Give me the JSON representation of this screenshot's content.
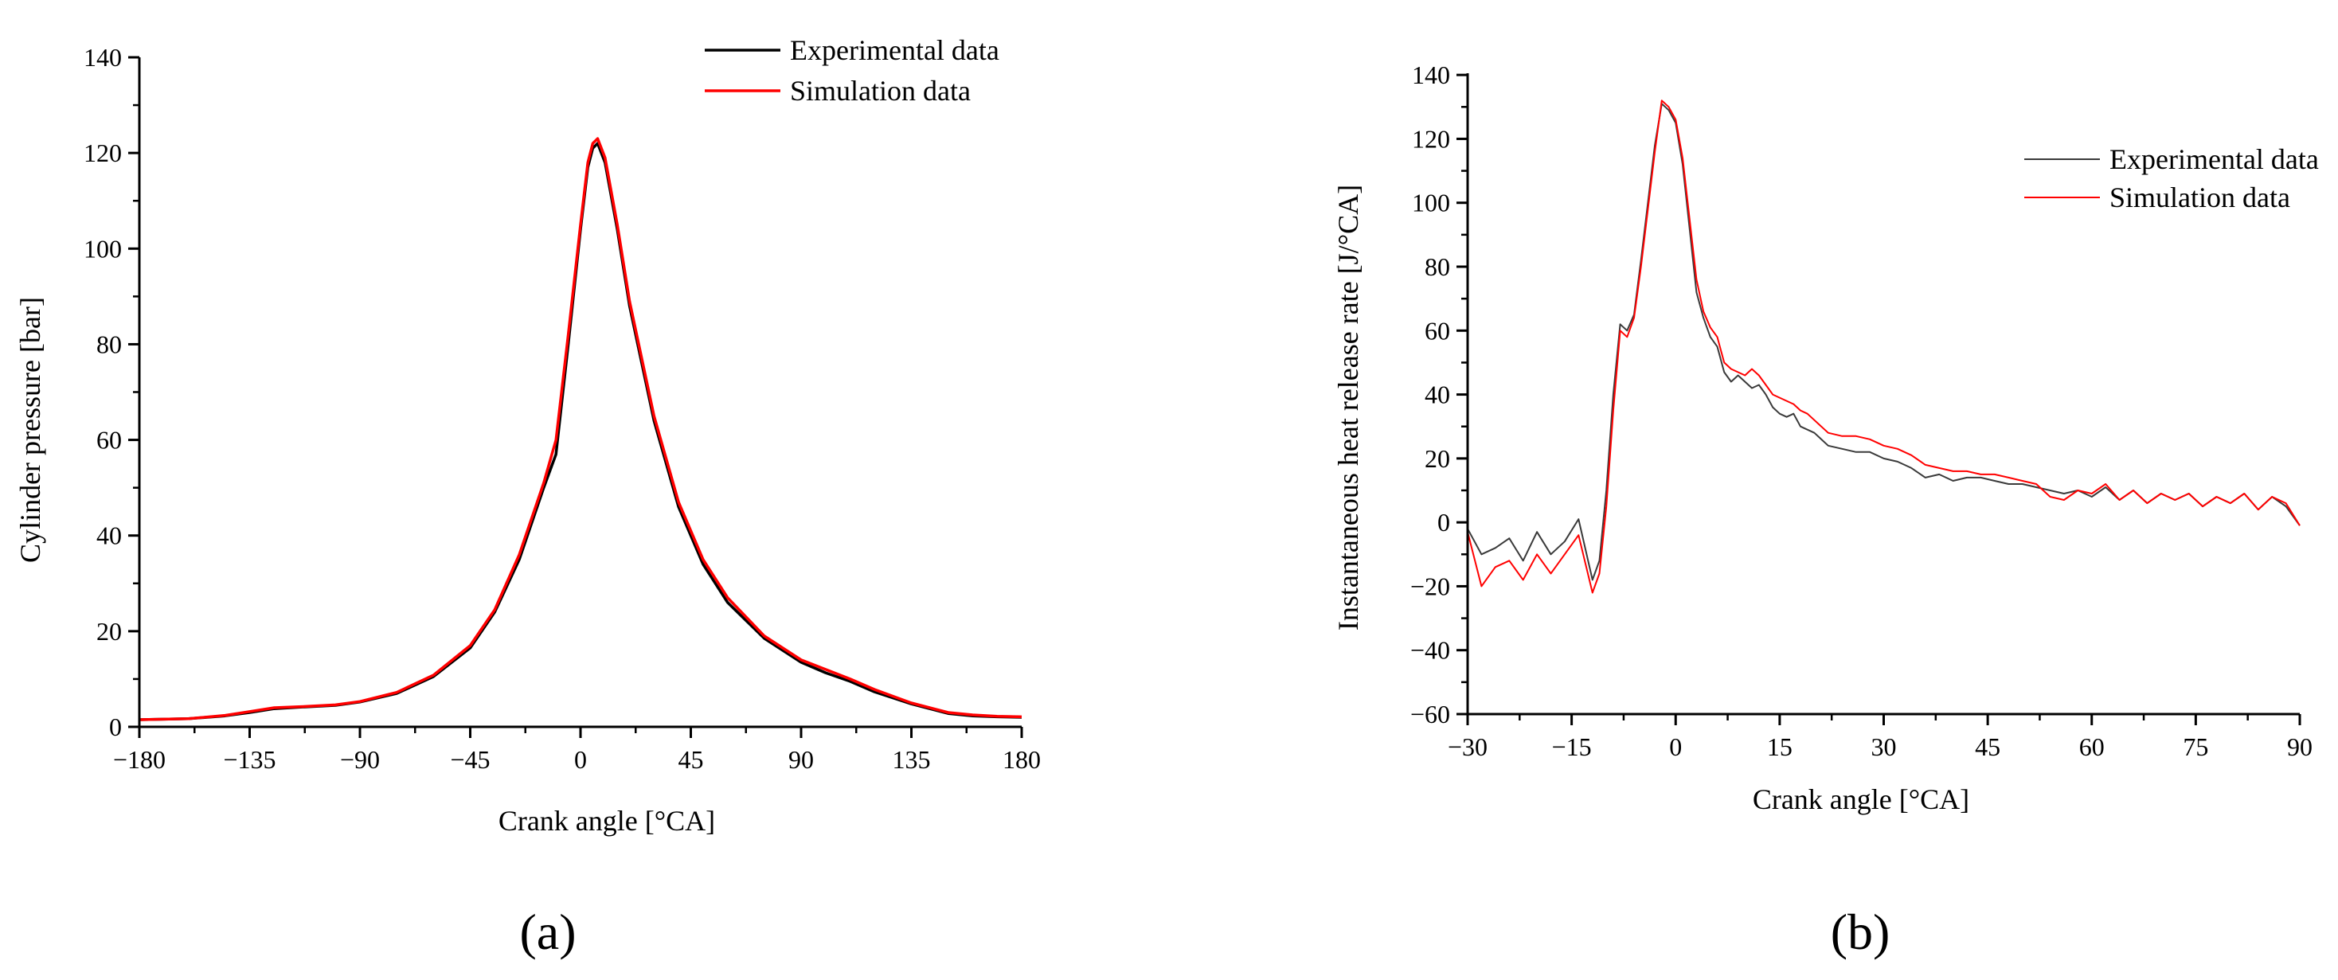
{
  "figure": {
    "panel_labels": [
      "(a)",
      "(b)"
    ]
  },
  "chart_data": [
    {
      "type": "line",
      "panel": "a",
      "title": "",
      "xlabel": "Crank angle [°CA]",
      "ylabel": "Cylinder pressure [bar]",
      "xlim": [
        -180,
        180
      ],
      "ylim": [
        0,
        140
      ],
      "xticks": [
        -180,
        -135,
        -90,
        -45,
        0,
        45,
        90,
        135,
        180
      ],
      "xtick_labels": [
        "−180",
        "−135",
        "−90",
        "−45",
        "0",
        "45",
        "90",
        "135",
        "180"
      ],
      "yticks": [
        0,
        20,
        40,
        60,
        80,
        100,
        120,
        140
      ],
      "ytick_labels": [
        "0",
        "20",
        "40",
        "60",
        "80",
        "100",
        "120",
        "140"
      ],
      "grid": false,
      "legend_position": "top-right",
      "series": [
        {
          "name": "Experimental data",
          "color": "#000000",
          "x": [
            -180,
            -160,
            -145,
            -135,
            -125,
            -115,
            -100,
            -90,
            -75,
            -60,
            -45,
            -35,
            -25,
            -15,
            -10,
            -5,
            0,
            3,
            5,
            7,
            10,
            15,
            20,
            30,
            40,
            50,
            60,
            75,
            90,
            100,
            110,
            120,
            135,
            150,
            160,
            170,
            180
          ],
          "y": [
            1.5,
            1.7,
            2.3,
            3.0,
            3.8,
            4.1,
            4.5,
            5.2,
            7.0,
            10.5,
            16.5,
            24,
            35,
            50,
            57,
            80,
            104,
            117,
            121,
            122,
            118,
            104,
            88,
            64,
            46,
            34,
            26,
            18.5,
            13.5,
            11.3,
            9.5,
            7.3,
            4.8,
            2.8,
            2.3,
            2.1,
            2.0
          ]
        },
        {
          "name": "Simulation data",
          "color": "#ff0000",
          "x": [
            -180,
            -160,
            -145,
            -135,
            -125,
            -115,
            -100,
            -90,
            -75,
            -60,
            -45,
            -35,
            -25,
            -15,
            -10,
            -5,
            0,
            3,
            5,
            7,
            10,
            15,
            20,
            30,
            40,
            50,
            60,
            75,
            90,
            100,
            110,
            120,
            135,
            150,
            160,
            170,
            180
          ],
          "y": [
            1.5,
            1.7,
            2.4,
            3.2,
            4.0,
            4.2,
            4.6,
            5.3,
            7.2,
            10.8,
            17,
            24.5,
            36,
            51,
            60,
            82,
            105,
            118,
            122,
            123,
            119,
            105,
            89,
            65,
            47,
            35,
            27,
            19,
            14,
            12,
            10,
            7.8,
            5.0,
            3.0,
            2.5,
            2.2,
            2.1
          ]
        }
      ]
    },
    {
      "type": "line",
      "panel": "b",
      "title": "",
      "xlabel": "Crank angle [°CA]",
      "ylabel": "Instantaneous heat release rate [J/°CA]",
      "xlim": [
        -30,
        90
      ],
      "ylim": [
        -60,
        150
      ],
      "xticks": [
        -30,
        -15,
        0,
        15,
        30,
        45,
        60,
        75,
        90
      ],
      "xtick_labels": [
        "−30",
        "−15",
        "0",
        "15",
        "30",
        "45",
        "60",
        "75",
        "90"
      ],
      "yticks": [
        -60,
        -40,
        -20,
        0,
        20,
        40,
        60,
        80,
        100,
        120,
        140
      ],
      "ytick_labels": [
        "−60",
        "−40",
        "−20",
        "0",
        "20",
        "40",
        "60",
        "80",
        "100",
        "120",
        "140"
      ],
      "grid": false,
      "legend_position": "top-right",
      "series": [
        {
          "name": "Experimental data",
          "color": "#3a3a3a",
          "x": [
            -30,
            -28,
            -26,
            -24,
            -22,
            -20,
            -18,
            -16,
            -14,
            -12,
            -11,
            -10,
            -9,
            -8,
            -7,
            -6,
            -5,
            -4,
            -3,
            -2,
            -1,
            0,
            1,
            2,
            3,
            4,
            5,
            6,
            7,
            8,
            9,
            10,
            11,
            12,
            13,
            14,
            15,
            16,
            17,
            18,
            19,
            20,
            22,
            24,
            26,
            28,
            30,
            32,
            34,
            36,
            38,
            40,
            42,
            44,
            46,
            48,
            50,
            52,
            54,
            56,
            58,
            60,
            62,
            64,
            66,
            68,
            70,
            72,
            74,
            76,
            78,
            80,
            82,
            84,
            86,
            88,
            90
          ],
          "y": [
            -2,
            -10,
            -8,
            -5,
            -12,
            -3,
            -10,
            -6,
            1,
            -18,
            -12,
            10,
            40,
            62,
            60,
            65,
            82,
            100,
            118,
            131,
            129,
            125,
            112,
            92,
            72,
            64,
            58,
            55,
            47,
            44,
            46,
            44,
            42,
            43,
            40,
            36,
            34,
            33,
            34,
            30,
            29,
            28,
            24,
            23,
            22,
            22,
            20,
            19,
            17,
            14,
            15,
            13,
            14,
            14,
            13,
            12,
            12,
            11,
            10,
            9,
            10,
            8,
            11,
            7,
            10,
            6,
            9,
            7,
            9,
            5,
            8,
            6,
            9,
            4,
            8,
            5,
            -1
          ]
        },
        {
          "name": "Simulation data",
          "color": "#ff0000",
          "x": [
            -30,
            -28,
            -26,
            -24,
            -22,
            -20,
            -18,
            -16,
            -14,
            -12,
            -11,
            -10,
            -9,
            -8,
            -7,
            -6,
            -5,
            -4,
            -3,
            -2,
            -1,
            0,
            1,
            2,
            3,
            4,
            5,
            6,
            7,
            8,
            9,
            10,
            11,
            12,
            13,
            14,
            15,
            16,
            17,
            18,
            19,
            20,
            22,
            24,
            26,
            28,
            30,
            32,
            34,
            36,
            38,
            40,
            42,
            44,
            46,
            48,
            50,
            52,
            54,
            56,
            58,
            60,
            62,
            64,
            66,
            68,
            70,
            72,
            74,
            76,
            78,
            80,
            82,
            84,
            86,
            88,
            90
          ],
          "y": [
            -3,
            -20,
            -14,
            -12,
            -18,
            -10,
            -16,
            -10,
            -4,
            -22,
            -16,
            5,
            35,
            60,
            58,
            64,
            80,
            98,
            116,
            132,
            130,
            126,
            114,
            95,
            76,
            66,
            61,
            58,
            50,
            48,
            47,
            46,
            48,
            46,
            43,
            40,
            39,
            38,
            37,
            35,
            34,
            32,
            28,
            27,
            27,
            26,
            24,
            23,
            21,
            18,
            17,
            16,
            16,
            15,
            15,
            14,
            13,
            12,
            8,
            7,
            10,
            9,
            12,
            7,
            10,
            6,
            9,
            7,
            9,
            5,
            8,
            6,
            9,
            4,
            8,
            6,
            -1
          ]
        }
      ]
    }
  ]
}
